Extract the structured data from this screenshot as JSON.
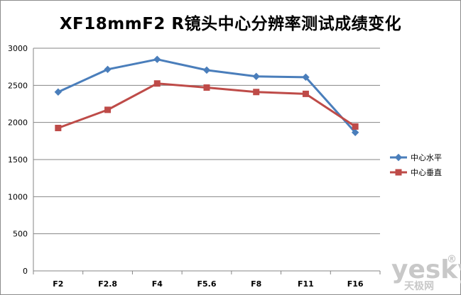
{
  "chart_data": {
    "type": "line",
    "title": "XF18mmF2 R镜头中心分辨率测试成绩变化",
    "xlabel": "",
    "ylabel": "",
    "categories": [
      "F2",
      "F2.8",
      "F4",
      "F5.6",
      "F8",
      "F11",
      "F16"
    ],
    "ylim": [
      0,
      3000
    ],
    "yticks": [
      0,
      500,
      1000,
      1500,
      2000,
      2500,
      3000
    ],
    "grid": true,
    "legend_position": "right",
    "series": [
      {
        "name": "中心水平",
        "color": "#4a7ebb",
        "marker": "diamond",
        "values": [
          2410,
          2715,
          2850,
          2705,
          2620,
          2610,
          1865
        ]
      },
      {
        "name": "中心垂直",
        "color": "#be4b48",
        "marker": "square",
        "values": [
          1925,
          2170,
          2525,
          2470,
          2410,
          2385,
          1945
        ]
      }
    ]
  },
  "watermark": {
    "brand": "yesky",
    "suffix": "®",
    "subtitle": "天极网"
  }
}
